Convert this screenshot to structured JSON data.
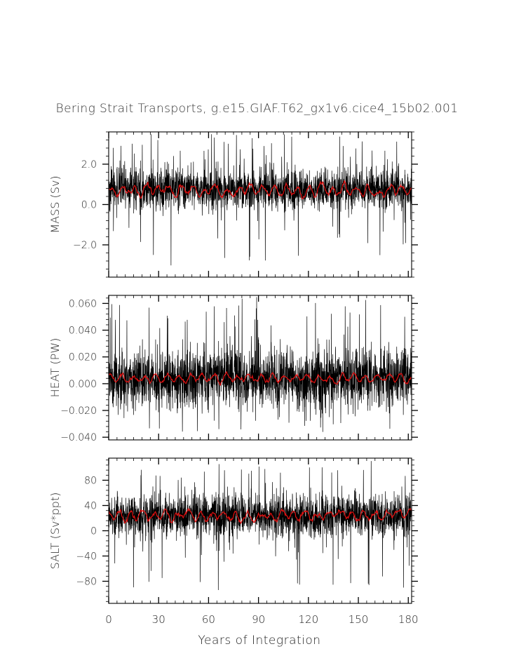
{
  "title": "Bering Strait Transports, g.e15.GIAF.T62_gx1v6.cice4_15b02.001",
  "xlabel": "Years of Integration",
  "colors": {
    "raw": "#000000",
    "smooth": "#e01010",
    "axis": "#000000"
  },
  "chart_data": [
    {
      "type": "line",
      "panel": "mass",
      "ylabel": "MASS (Sv)",
      "xlim": [
        0,
        182
      ],
      "ylim": [
        -3.6,
        3.6
      ],
      "x_ticks": [
        0,
        30,
        60,
        90,
        120,
        150,
        180
      ],
      "y_ticks": [
        -2.0,
        0.0,
        2.0
      ],
      "y_tick_labels": [
        "−2.0",
        "0.0",
        "2.0"
      ],
      "series": [
        {
          "role": "raw",
          "mean": 0.75,
          "spread": 0.55,
          "spike_up": 3.5,
          "spike_down": -3.5
        },
        {
          "role": "smooth",
          "mean": 0.7,
          "amplitude": 0.25
        }
      ]
    },
    {
      "type": "line",
      "panel": "heat",
      "ylabel": "HEAT (PW)",
      "xlim": [
        0,
        182
      ],
      "ylim": [
        -0.042,
        0.066
      ],
      "x_ticks": [
        0,
        30,
        60,
        90,
        120,
        150,
        180
      ],
      "y_ticks": [
        -0.04,
        -0.02,
        0.0,
        0.02,
        0.04,
        0.06
      ],
      "y_tick_labels": [
        "−0.040",
        "−0.020",
        "0.000",
        "0.020",
        "0.040",
        "0.060"
      ],
      "series": [
        {
          "role": "raw",
          "mean": 0.004,
          "spread": 0.012,
          "spike_up": 0.065,
          "spike_down": -0.041
        },
        {
          "role": "smooth",
          "mean": 0.004,
          "amplitude": 0.003
        }
      ]
    },
    {
      "type": "line",
      "panel": "salt",
      "ylabel": "SALT (Sv*ppt)",
      "xlim": [
        0,
        182
      ],
      "ylim": [
        -115,
        115
      ],
      "x_ticks": [
        0,
        30,
        60,
        90,
        120,
        150,
        180
      ],
      "y_ticks": [
        -80,
        -40,
        0,
        40,
        80
      ],
      "y_tick_labels": [
        "−80",
        "−40",
        "0",
        "40",
        "80"
      ],
      "series": [
        {
          "role": "raw",
          "mean": 24,
          "spread": 18,
          "spike_up": 112,
          "spike_down": -112
        },
        {
          "role": "smooth",
          "mean": 24,
          "amplitude": 8
        }
      ]
    }
  ]
}
